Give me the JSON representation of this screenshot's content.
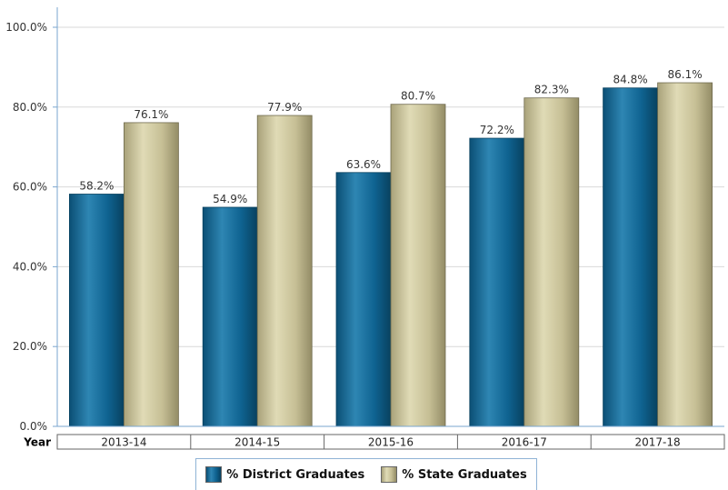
{
  "chart_data": {
    "type": "bar",
    "categories": [
      "2013-14",
      "2014-15",
      "2015-16",
      "2016-17",
      "2017-18"
    ],
    "series": [
      {
        "name": "% District Graduates",
        "values": [
          58.2,
          54.9,
          63.6,
          72.2,
          84.8
        ],
        "labels": [
          "58.2%",
          "54.9%",
          "63.6%",
          "72.2%",
          "84.8%"
        ],
        "color": "#0e5f8a"
      },
      {
        "name": "% State Graduates",
        "values": [
          76.1,
          77.9,
          80.7,
          82.3,
          86.1
        ],
        "labels": [
          "76.1%",
          "77.9%",
          "80.7%",
          "82.3%",
          "86.1%"
        ],
        "color": "#c8c196"
      }
    ],
    "xlabel": "Year",
    "ylim": [
      0,
      100
    ],
    "yticks": [
      0,
      20,
      40,
      60,
      80,
      100
    ],
    "ytick_labels": [
      "0.0%",
      "20.0%",
      "40.0%",
      "60.0%",
      "80.0%",
      "100.0%"
    ],
    "grid": true,
    "legend_position": "bottom-center"
  }
}
